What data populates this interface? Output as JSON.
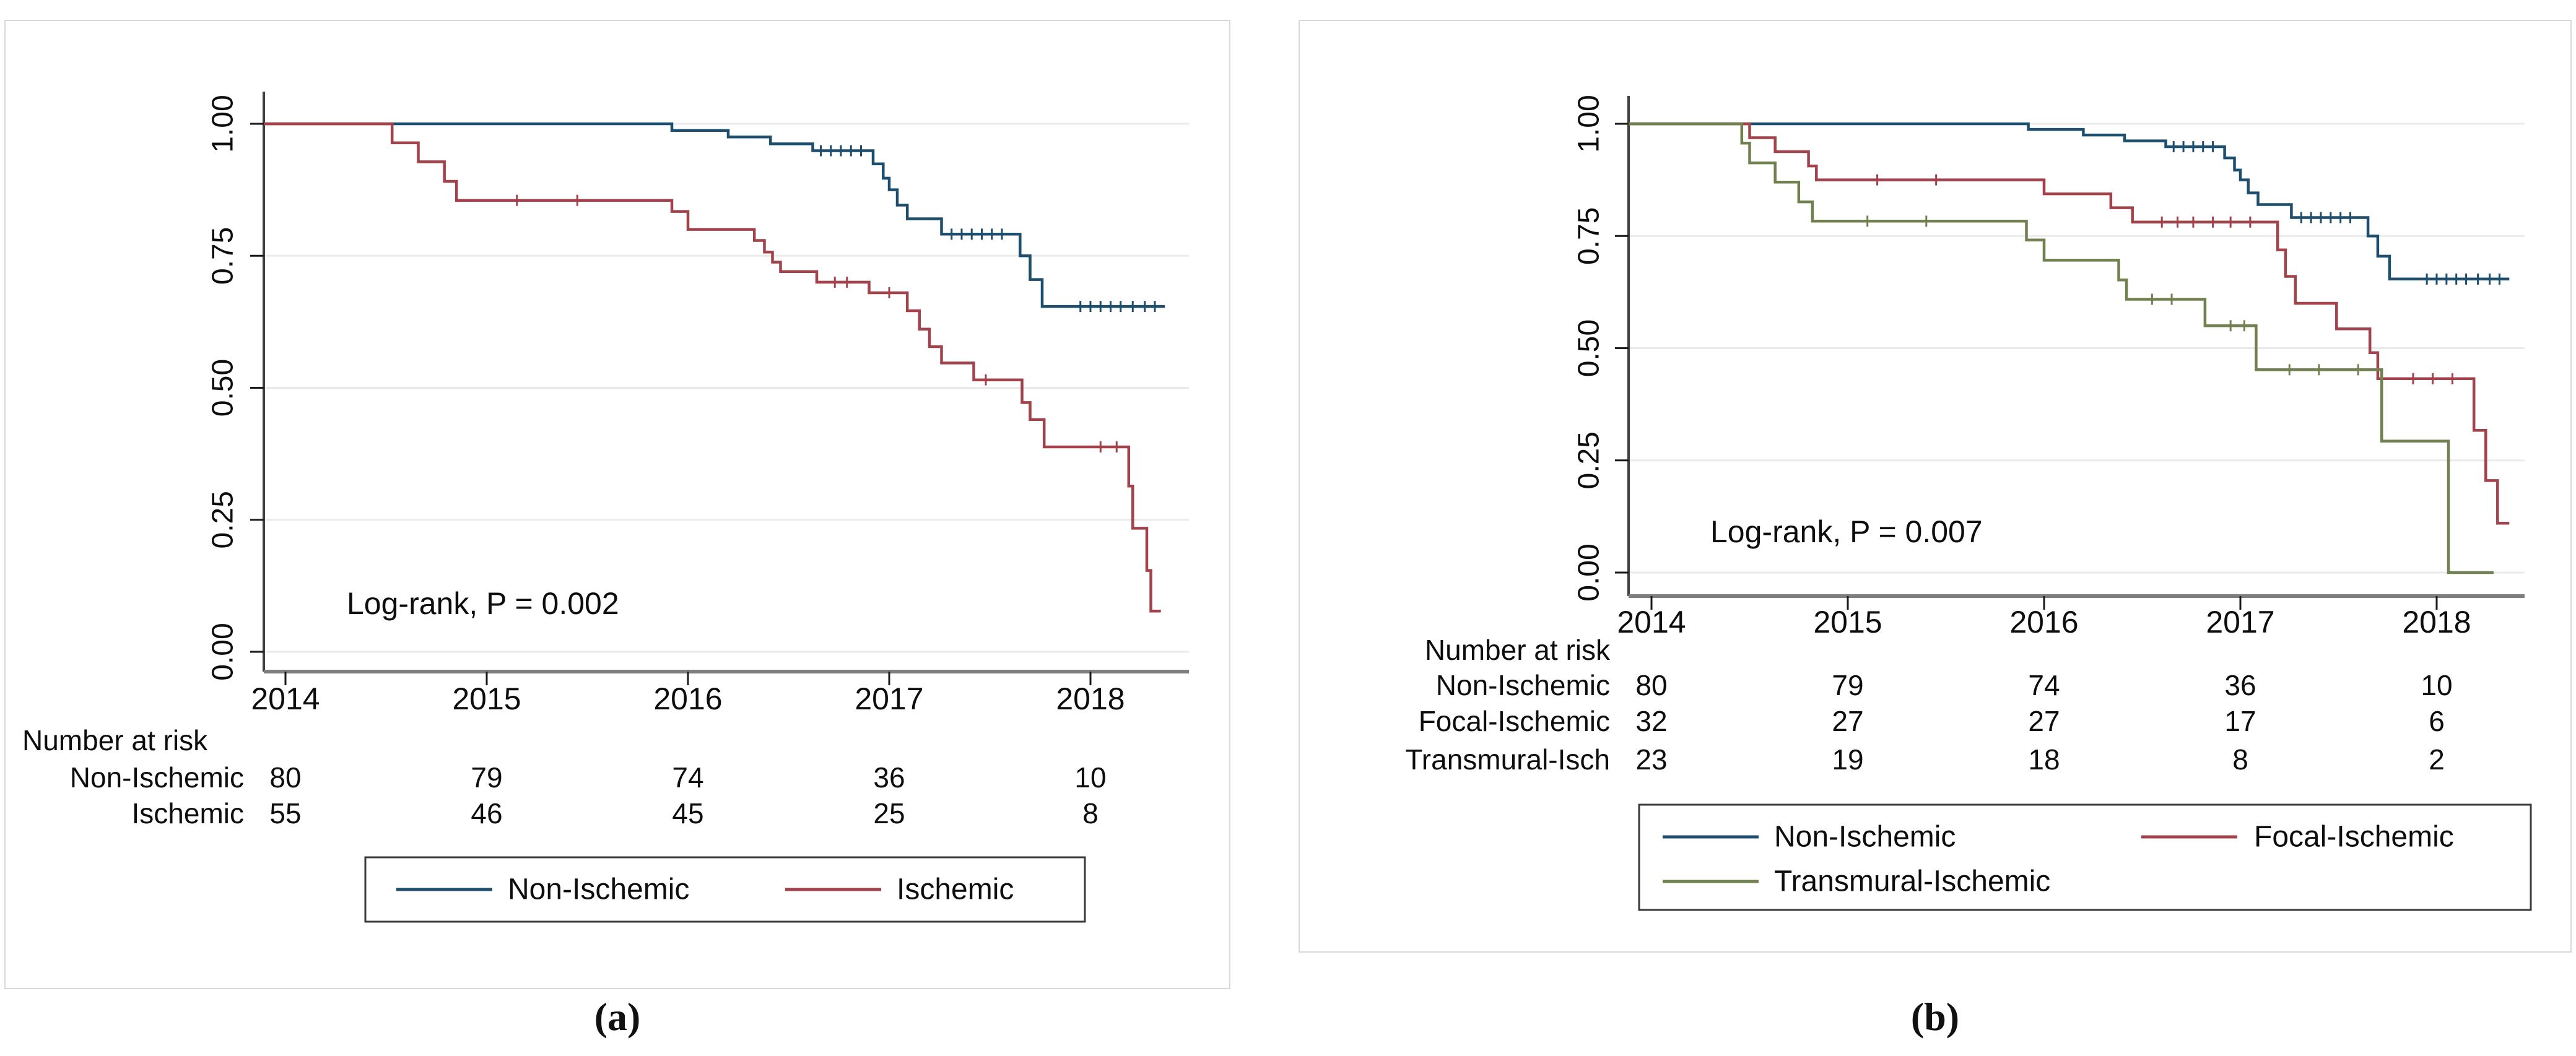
{
  "page": {
    "background": "#ffffff"
  },
  "colors": {
    "non_ischemic": "#1d4e6e",
    "ischemic": "#a2424a",
    "focal_ischemic": "#a2424a",
    "transmural_ischemic": "#70804f",
    "gridline": "#e9ebeb",
    "x_axis": "#7f7f7f",
    "y_axis": "#404040",
    "tick": "#1a1a1a",
    "text": "#0d0d0d",
    "panel_border": "#d9d9d9",
    "legend_border": "#3a3a3a"
  },
  "chart_data": [
    {
      "panel": "a",
      "caption": "(a)",
      "type": "line",
      "subtype": "kaplan-meier-step",
      "annotation": "Log-rank, P = 0.002",
      "xlim": [
        2013.89,
        2018.48
      ],
      "ylim": [
        0,
        1
      ],
      "x_ticks": [
        "2014",
        "2015",
        "2016",
        "2017",
        "2018"
      ],
      "y_ticks": [
        "0.00",
        "0.25",
        "0.50",
        "0.75",
        "1.00"
      ],
      "grid": "horizontal",
      "legend_position": "bottom",
      "series": [
        {
          "name": "Non-Ischemic",
          "color_key": "non_ischemic",
          "end_x": 2018.37,
          "steps": [
            [
              2014.0,
              1.0
            ],
            [
              2015.92,
              0.9875
            ],
            [
              2016.2,
              0.975
            ],
            [
              2016.41,
              0.962
            ],
            [
              2016.62,
              0.949
            ],
            [
              2016.92,
              0.924
            ],
            [
              2016.97,
              0.897
            ],
            [
              2017.0,
              0.875
            ],
            [
              2017.04,
              0.846
            ],
            [
              2017.09,
              0.82
            ],
            [
              2017.26,
              0.791
            ],
            [
              2017.65,
              0.75
            ],
            [
              2017.7,
              0.705
            ],
            [
              2017.76,
              0.654
            ]
          ],
          "censors": [
            [
              2016.66,
              0.949
            ],
            [
              2016.71,
              0.949
            ],
            [
              2016.76,
              0.949
            ],
            [
              2016.81,
              0.949
            ],
            [
              2016.86,
              0.949
            ],
            [
              2017.31,
              0.791
            ],
            [
              2017.36,
              0.791
            ],
            [
              2017.41,
              0.791
            ],
            [
              2017.46,
              0.791
            ],
            [
              2017.51,
              0.791
            ],
            [
              2017.56,
              0.791
            ],
            [
              2017.95,
              0.654
            ],
            [
              2018.0,
              0.654
            ],
            [
              2018.05,
              0.654
            ],
            [
              2018.1,
              0.654
            ],
            [
              2018.15,
              0.654
            ],
            [
              2018.21,
              0.654
            ],
            [
              2018.27,
              0.654
            ],
            [
              2018.32,
              0.654
            ]
          ]
        },
        {
          "name": "Ischemic",
          "color_key": "ischemic",
          "end_x": 2018.35,
          "steps": [
            [
              2014.0,
              1.0
            ],
            [
              2014.53,
              0.964
            ],
            [
              2014.66,
              0.928
            ],
            [
              2014.79,
              0.891
            ],
            [
              2014.85,
              0.855
            ],
            [
              2015.92,
              0.834
            ],
            [
              2016.0,
              0.8
            ],
            [
              2016.33,
              0.779
            ],
            [
              2016.38,
              0.757
            ],
            [
              2016.42,
              0.738
            ],
            [
              2016.46,
              0.72
            ],
            [
              2016.64,
              0.7
            ],
            [
              2016.9,
              0.68
            ],
            [
              2017.09,
              0.646
            ],
            [
              2017.15,
              0.611
            ],
            [
              2017.2,
              0.578
            ],
            [
              2017.26,
              0.547
            ],
            [
              2017.42,
              0.515
            ],
            [
              2017.66,
              0.472
            ],
            [
              2017.7,
              0.44
            ],
            [
              2017.77,
              0.388
            ],
            [
              2018.19,
              0.314
            ],
            [
              2018.21,
              0.234
            ],
            [
              2018.28,
              0.154
            ],
            [
              2018.3,
              0.077
            ]
          ],
          "censors": [
            [
              2015.15,
              0.855
            ],
            [
              2015.45,
              0.855
            ],
            [
              2016.73,
              0.7
            ],
            [
              2016.79,
              0.7
            ],
            [
              2017.0,
              0.68
            ],
            [
              2017.48,
              0.515
            ],
            [
              2018.05,
              0.388
            ],
            [
              2018.13,
              0.388
            ]
          ]
        }
      ],
      "number_at_risk": {
        "title": "Number at risk",
        "years": [
          "2014",
          "2015",
          "2016",
          "2017",
          "2018"
        ],
        "rows": [
          {
            "label": "Non-Ischemic",
            "counts": [
              "80",
              "79",
              "74",
              "36",
              "10"
            ]
          },
          {
            "label": "Ischemic",
            "counts": [
              "55",
              "46",
              "45",
              "25",
              "8"
            ]
          }
        ]
      },
      "legend": [
        {
          "label": "Non-Ischemic",
          "color_key": "non_ischemic"
        },
        {
          "label": "Ischemic",
          "color_key": "ischemic"
        }
      ]
    },
    {
      "panel": "b",
      "caption": "(b)",
      "type": "line",
      "subtype": "kaplan-meier-step",
      "annotation": "Log-rank, P = 0.007",
      "xlim": [
        2013.89,
        2018.48
      ],
      "ylim": [
        0,
        1
      ],
      "x_ticks": [
        "2014",
        "2015",
        "2016",
        "2017",
        "2018"
      ],
      "y_ticks": [
        "0.00",
        "0.25",
        "0.50",
        "0.75",
        "1.00"
      ],
      "grid": "horizontal",
      "legend_position": "bottom",
      "series": [
        {
          "name": "Non-Ischemic",
          "color_key": "non_ischemic",
          "end_x": 2018.37,
          "steps": [
            [
              2014.0,
              1.0
            ],
            [
              2015.92,
              0.9875
            ],
            [
              2016.2,
              0.975
            ],
            [
              2016.41,
              0.962
            ],
            [
              2016.62,
              0.949
            ],
            [
              2016.92,
              0.924
            ],
            [
              2016.97,
              0.897
            ],
            [
              2017.0,
              0.875
            ],
            [
              2017.04,
              0.846
            ],
            [
              2017.09,
              0.82
            ],
            [
              2017.26,
              0.791
            ],
            [
              2017.65,
              0.75
            ],
            [
              2017.7,
              0.705
            ],
            [
              2017.76,
              0.654
            ]
          ],
          "censors": [
            [
              2016.66,
              0.949
            ],
            [
              2016.71,
              0.949
            ],
            [
              2016.76,
              0.949
            ],
            [
              2016.81,
              0.949
            ],
            [
              2016.86,
              0.949
            ],
            [
              2017.31,
              0.791
            ],
            [
              2017.36,
              0.791
            ],
            [
              2017.41,
              0.791
            ],
            [
              2017.46,
              0.791
            ],
            [
              2017.51,
              0.791
            ],
            [
              2017.56,
              0.791
            ],
            [
              2017.95,
              0.654
            ],
            [
              2018.0,
              0.654
            ],
            [
              2018.05,
              0.654
            ],
            [
              2018.1,
              0.654
            ],
            [
              2018.15,
              0.654
            ],
            [
              2018.21,
              0.654
            ],
            [
              2018.27,
              0.654
            ],
            [
              2018.32,
              0.654
            ]
          ]
        },
        {
          "name": "Focal-Ischemic",
          "color_key": "focal_ischemic",
          "end_x": 2018.37,
          "steps": [
            [
              2014.0,
              1.0
            ],
            [
              2014.5,
              0.969
            ],
            [
              2014.63,
              0.938
            ],
            [
              2014.8,
              0.906
            ],
            [
              2014.84,
              0.875
            ],
            [
              2016.0,
              0.844
            ],
            [
              2016.34,
              0.813
            ],
            [
              2016.45,
              0.781
            ],
            [
              2017.19,
              0.719
            ],
            [
              2017.23,
              0.66
            ],
            [
              2017.28,
              0.6
            ],
            [
              2017.49,
              0.543
            ],
            [
              2017.66,
              0.49
            ],
            [
              2017.7,
              0.432
            ],
            [
              2018.19,
              0.317
            ],
            [
              2018.25,
              0.205
            ],
            [
              2018.31,
              0.11
            ]
          ],
          "censors": [
            [
              2015.15,
              0.875
            ],
            [
              2015.45,
              0.875
            ],
            [
              2016.6,
              0.781
            ],
            [
              2016.68,
              0.781
            ],
            [
              2016.76,
              0.781
            ],
            [
              2016.86,
              0.781
            ],
            [
              2016.95,
              0.781
            ],
            [
              2017.05,
              0.781
            ],
            [
              2017.88,
              0.432
            ],
            [
              2017.98,
              0.432
            ],
            [
              2018.08,
              0.432
            ]
          ]
        },
        {
          "name": "Transmural-Ischemic",
          "color_key": "transmural_ischemic",
          "end_x": 2018.29,
          "steps": [
            [
              2014.0,
              1.0
            ],
            [
              2014.46,
              0.957
            ],
            [
              2014.5,
              0.913
            ],
            [
              2014.63,
              0.87
            ],
            [
              2014.75,
              0.826
            ],
            [
              2014.82,
              0.783
            ],
            [
              2015.91,
              0.741
            ],
            [
              2016.0,
              0.696
            ],
            [
              2016.38,
              0.652
            ],
            [
              2016.42,
              0.609
            ],
            [
              2016.82,
              0.55
            ],
            [
              2017.08,
              0.452
            ],
            [
              2017.72,
              0.293
            ],
            [
              2018.06,
              0.0
            ]
          ],
          "censors": [
            [
              2015.1,
              0.783
            ],
            [
              2015.4,
              0.783
            ],
            [
              2016.55,
              0.609
            ],
            [
              2016.65,
              0.609
            ],
            [
              2016.95,
              0.55
            ],
            [
              2017.02,
              0.55
            ],
            [
              2017.25,
              0.452
            ],
            [
              2017.4,
              0.452
            ],
            [
              2017.6,
              0.452
            ]
          ]
        }
      ],
      "number_at_risk": {
        "title": "Number at risk",
        "years": [
          "2014",
          "2015",
          "2016",
          "2017",
          "2018"
        ],
        "rows": [
          {
            "label": "Non-Ischemic",
            "counts": [
              "80",
              "79",
              "74",
              "36",
              "10"
            ]
          },
          {
            "label": "Focal-Ischemic",
            "counts": [
              "32",
              "27",
              "27",
              "17",
              "6"
            ]
          },
          {
            "label": "Transmural-Isch",
            "counts": [
              "23",
              "19",
              "18",
              "8",
              "2"
            ]
          }
        ]
      },
      "legend": [
        {
          "label": "Non-Ischemic",
          "color_key": "non_ischemic"
        },
        {
          "label": "Focal-Ischemic",
          "color_key": "focal_ischemic"
        },
        {
          "label": "Transmural-Ischemic",
          "color_key": "transmural_ischemic"
        }
      ]
    }
  ]
}
